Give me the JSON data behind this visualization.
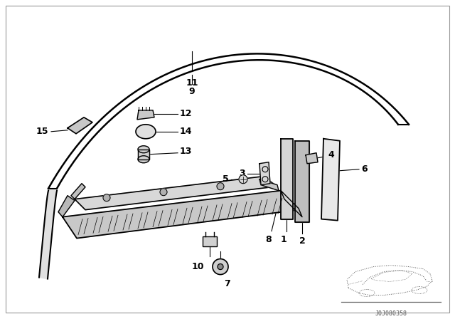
{
  "background_color": "#ffffff",
  "fig_width": 6.4,
  "fig_height": 4.48,
  "dpi": 100,
  "line_color": "#000000",
  "watermark": "J0J080358"
}
